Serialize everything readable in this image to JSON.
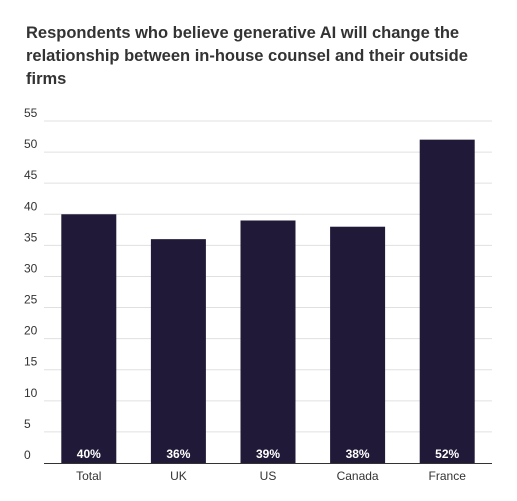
{
  "chart_data": {
    "type": "bar",
    "title": "Respondents who believe generative AI will change the relationship between in-house counsel and their outside firms",
    "categories": [
      "Total",
      "UK",
      "US",
      "Canada",
      "France"
    ],
    "values": [
      40,
      36,
      39,
      38,
      52
    ],
    "data_labels": [
      "40%",
      "36%",
      "39%",
      "38%",
      "52%"
    ],
    "ylim": [
      0,
      55
    ],
    "yticks": [
      0,
      5,
      10,
      15,
      20,
      25,
      30,
      35,
      40,
      45,
      50,
      55
    ],
    "grid": true,
    "xlabel": "",
    "ylabel": "",
    "colors": {
      "bar": "#211938",
      "grid": "#e0e0e0",
      "axis": "#333333",
      "text": "#333333",
      "label_text": "#ffffff"
    }
  }
}
